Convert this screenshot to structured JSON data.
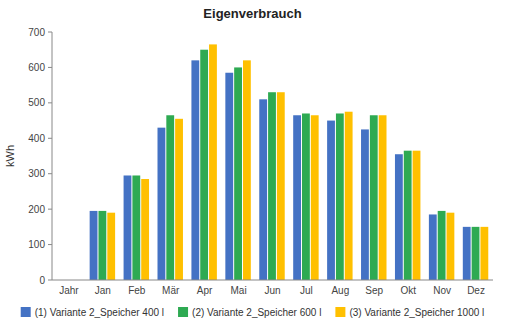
{
  "chart_data": {
    "type": "bar",
    "title": "Eigenverbrauch",
    "y_label": "kWh",
    "categories": [
      "Jahr",
      "Jan",
      "Feb",
      "Mär",
      "Apr",
      "Mai",
      "Jun",
      "Jul",
      "Aug",
      "Sep",
      "Okt",
      "Nov",
      "Dez"
    ],
    "series": [
      {
        "name": "(1) Variante 2_Speicher 400 l",
        "color": "#4472C4",
        "values": [
          0,
          195,
          295,
          430,
          620,
          585,
          510,
          465,
          450,
          425,
          355,
          185,
          150
        ]
      },
      {
        "name": "(2) Variante 2_Speicher 600 l",
        "color": "#2EAA52",
        "values": [
          0,
          195,
          295,
          465,
          650,
          600,
          530,
          470,
          470,
          465,
          365,
          195,
          150
        ]
      },
      {
        "name": "(3) Variante 2_Speicher 1000 l",
        "color": "#FFC000",
        "values": [
          0,
          190,
          285,
          455,
          665,
          620,
          530,
          465,
          475,
          465,
          365,
          190,
          150
        ]
      }
    ],
    "ylim": [
      0,
      700
    ],
    "yticks": [
      0,
      100,
      200,
      300,
      400,
      500,
      600,
      700
    ],
    "grid": false,
    "legend": "bottom"
  }
}
